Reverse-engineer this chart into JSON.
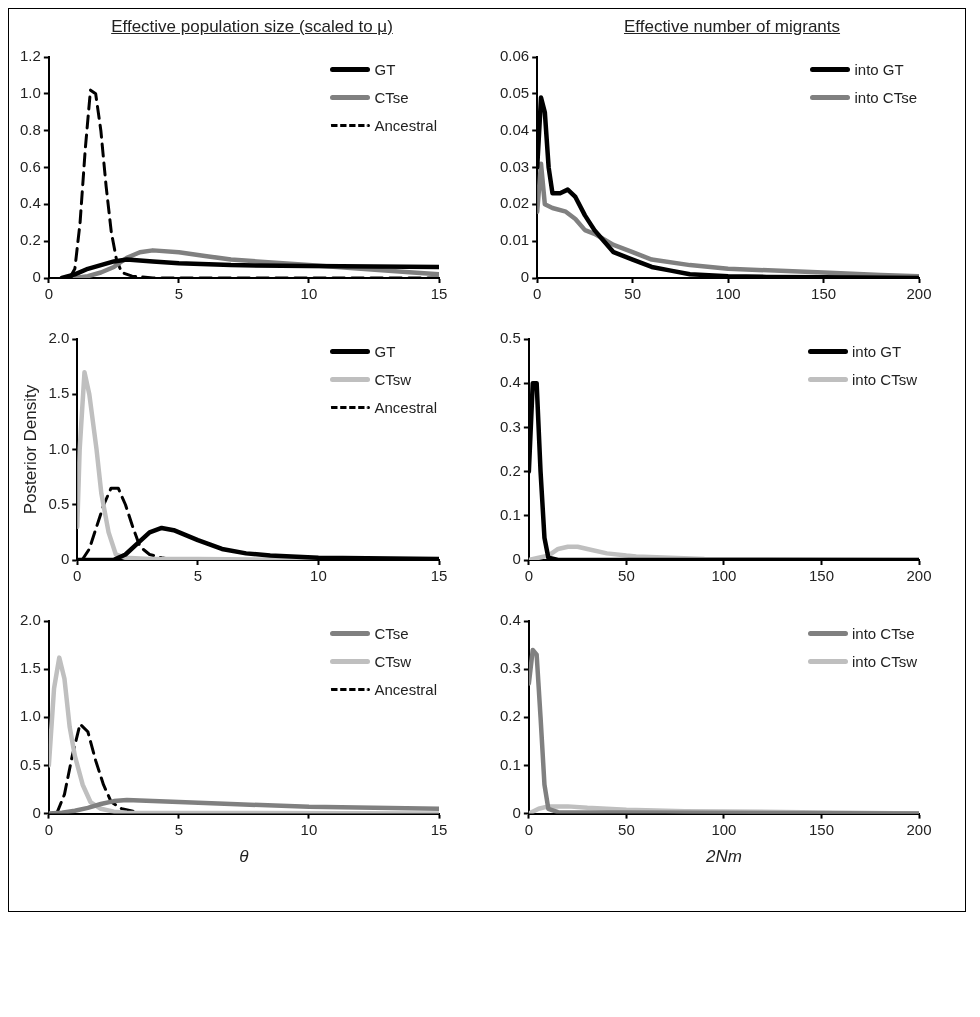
{
  "chart_data": [
    {
      "type": "line",
      "title": "Effective population size (scaled to μ)",
      "xlim": [
        0,
        15
      ],
      "xticks": [
        0,
        5,
        10,
        15
      ],
      "ylim": [
        0,
        1.2
      ],
      "yticks": [
        {
          "value": 0,
          "label": "0"
        },
        {
          "value": 0.2,
          "label": "0.2"
        },
        {
          "value": 0.4,
          "label": "0.4"
        },
        {
          "value": 0.6,
          "label": "0.6"
        },
        {
          "value": 0.8,
          "label": "0.8"
        },
        {
          "value": 1,
          "label": "1.0"
        },
        {
          "value": 1.2,
          "label": "1.2"
        }
      ],
      "grid": false,
      "legend": "top right",
      "series": [
        {
          "name": "GT",
          "color": "#000000",
          "x": [
            0.5,
            1,
            1.5,
            2,
            2.5,
            3,
            4,
            5,
            7,
            10,
            15
          ],
          "values": [
            0,
            0.02,
            0.05,
            0.07,
            0.09,
            0.1,
            0.09,
            0.08,
            0.07,
            0.065,
            0.06
          ]
        },
        {
          "name": "CTse",
          "color": "#808080",
          "x": [
            1,
            1.5,
            2,
            2.5,
            3,
            3.5,
            4,
            5,
            6,
            7,
            8,
            10,
            12,
            14,
            15
          ],
          "values": [
            0,
            0.01,
            0.03,
            0.06,
            0.11,
            0.14,
            0.15,
            0.14,
            0.12,
            0.1,
            0.09,
            0.07,
            0.05,
            0.03,
            0.02
          ]
        },
        {
          "name": "Ancestral",
          "color": "#000000",
          "line_style": "dashed",
          "x": [
            0.8,
            1,
            1.2,
            1.4,
            1.6,
            1.8,
            2,
            2.2,
            2.4,
            2.6,
            2.8,
            3.2,
            4,
            15
          ],
          "values": [
            0,
            0.05,
            0.3,
            0.7,
            1.02,
            1,
            0.8,
            0.5,
            0.25,
            0.1,
            0.03,
            0.01,
            0,
            0
          ]
        }
      ]
    },
    {
      "type": "line",
      "title": "Effective number of migrants",
      "xlim": [
        0,
        200
      ],
      "xticks": [
        0,
        50,
        100,
        150,
        200
      ],
      "ylim": [
        0,
        0.06
      ],
      "yticks": [
        0,
        0.01,
        0.02,
        0.03,
        0.04,
        0.05,
        0.06
      ],
      "grid": false,
      "legend": "top right",
      "series": [
        {
          "name": "into GT",
          "color": "#000000",
          "x": [
            0,
            2,
            4,
            6,
            8,
            12,
            16,
            20,
            25,
            30,
            35,
            40,
            50,
            60,
            70,
            80,
            100,
            120,
            150,
            200
          ],
          "values": [
            0.03,
            0.049,
            0.045,
            0.03,
            0.023,
            0.023,
            0.024,
            0.022,
            0.017,
            0.013,
            0.01,
            0.007,
            0.005,
            0.003,
            0.002,
            0.001,
            0.0005,
            0.0003,
            0.0002,
            0
          ]
        },
        {
          "name": "into CTse",
          "color": "#808080",
          "x": [
            0,
            2,
            4,
            8,
            15,
            20,
            25,
            30,
            40,
            50,
            60,
            80,
            100,
            150,
            180,
            200
          ],
          "values": [
            0.018,
            0.031,
            0.02,
            0.019,
            0.018,
            0.016,
            0.013,
            0.012,
            0.009,
            0.007,
            0.005,
            0.0035,
            0.0025,
            0.0015,
            0.0008,
            0.0005
          ]
        }
      ]
    },
    {
      "type": "line",
      "ylabel": "Posterior Density",
      "xlim": [
        0,
        15
      ],
      "xticks": [
        0,
        5,
        10,
        15
      ],
      "ylim": [
        0,
        2
      ],
      "yticks": [
        {
          "value": 0,
          "label": "0"
        },
        {
          "value": 0.5,
          "label": "0.5"
        },
        {
          "value": 1,
          "label": "1.0"
        },
        {
          "value": 1.5,
          "label": "1.5"
        },
        {
          "value": 2,
          "label": "2.0"
        }
      ],
      "grid": false,
      "legend": "top right",
      "series": [
        {
          "name": "GT",
          "color": "#000000",
          "x": [
            0,
            1.5,
            2,
            2.5,
            3,
            3.5,
            4,
            5,
            6,
            7,
            8,
            10,
            15
          ],
          "values": [
            0,
            0,
            0.05,
            0.15,
            0.25,
            0.29,
            0.27,
            0.18,
            0.1,
            0.06,
            0.04,
            0.02,
            0.01
          ]
        },
        {
          "name": "CTsw",
          "color": "#bfbfbf",
          "x": [
            0,
            0.1,
            0.3,
            0.5,
            0.8,
            1,
            1.3,
            1.6,
            2,
            3,
            5,
            10,
            15
          ],
          "values": [
            0.3,
            1,
            1.7,
            1.5,
            1,
            0.6,
            0.25,
            0.05,
            0.02,
            0.01,
            0.01,
            0,
            0
          ]
        },
        {
          "name": "Ancestral",
          "color": "#000000",
          "line_style": "dashed",
          "x": [
            0.2,
            0.5,
            0.8,
            1.1,
            1.4,
            1.7,
            2,
            2.3,
            2.6,
            3,
            3.5,
            4,
            15
          ],
          "values": [
            0,
            0.1,
            0.3,
            0.5,
            0.65,
            0.65,
            0.5,
            0.3,
            0.12,
            0.05,
            0.02,
            0,
            0
          ]
        }
      ]
    },
    {
      "type": "line",
      "xlim": [
        0,
        200
      ],
      "xticks": [
        0,
        50,
        100,
        150,
        200
      ],
      "ylim": [
        0,
        0.5
      ],
      "yticks": [
        0,
        0.1,
        0.2,
        0.3,
        0.4,
        0.5
      ],
      "grid": false,
      "legend": "top right",
      "series": [
        {
          "name": "into GT",
          "color": "#000000",
          "x": [
            0,
            2,
            4,
            6,
            8,
            10,
            15,
            200
          ],
          "values": [
            0.2,
            0.4,
            0.4,
            0.2,
            0.05,
            0.005,
            0,
            0
          ]
        },
        {
          "name": "into CTsw",
          "color": "#bfbfbf",
          "x": [
            0,
            5,
            10,
            15,
            20,
            25,
            30,
            40,
            50,
            55,
            90,
            200
          ],
          "values": [
            0,
            0.005,
            0.01,
            0.025,
            0.03,
            0.03,
            0.025,
            0.015,
            0.01,
            0.008,
            0.002,
            0
          ]
        }
      ]
    },
    {
      "type": "line",
      "xlabel": "θ",
      "xlim": [
        0,
        15
      ],
      "xticks": [
        0,
        5,
        10,
        15
      ],
      "ylim": [
        0,
        2
      ],
      "yticks": [
        {
          "value": 0,
          "label": "0"
        },
        {
          "value": 0.5,
          "label": "0.5"
        },
        {
          "value": 1,
          "label": "1.0"
        },
        {
          "value": 1.5,
          "label": "1.5"
        },
        {
          "value": 2,
          "label": "2.0"
        }
      ],
      "grid": false,
      "legend": "top right",
      "series": [
        {
          "name": "CTse",
          "color": "#808080",
          "x": [
            0,
            0.5,
            1,
            1.5,
            2,
            2.5,
            3,
            4,
            5,
            7,
            10,
            15
          ],
          "values": [
            0,
            0.01,
            0.03,
            0.06,
            0.1,
            0.13,
            0.14,
            0.13,
            0.12,
            0.1,
            0.07,
            0.05
          ]
        },
        {
          "name": "CTsw",
          "color": "#bfbfbf",
          "x": [
            0,
            0.2,
            0.4,
            0.6,
            0.8,
            1,
            1.3,
            1.6,
            2,
            2.5,
            3,
            15
          ],
          "values": [
            0.5,
            1.3,
            1.62,
            1.4,
            0.9,
            0.6,
            0.3,
            0.12,
            0.05,
            0.02,
            0.01,
            0
          ]
        },
        {
          "name": "Ancestral",
          "color": "#000000",
          "line_style": "dashed",
          "x": [
            0.3,
            0.6,
            0.9,
            1.2,
            1.5,
            1.8,
            2.1,
            2.4,
            2.8,
            3.5,
            15
          ],
          "values": [
            0,
            0.2,
            0.6,
            0.93,
            0.85,
            0.55,
            0.3,
            0.12,
            0.05,
            0.01,
            0
          ]
        }
      ]
    },
    {
      "type": "line",
      "xlabel": "2Nm",
      "xlim": [
        0,
        200
      ],
      "xticks": [
        0,
        50,
        100,
        150,
        200
      ],
      "ylim": [
        0,
        0.4
      ],
      "yticks": [
        0,
        0.1,
        0.2,
        0.3,
        0.4
      ],
      "grid": false,
      "legend": "top right",
      "series": [
        {
          "name": "into CTse",
          "color": "#808080",
          "x": [
            0,
            2,
            4,
            6,
            8,
            10,
            15,
            200
          ],
          "values": [
            0.27,
            0.34,
            0.33,
            0.2,
            0.06,
            0.01,
            0.003,
            0
          ]
        },
        {
          "name": "into CTsw",
          "color": "#bfbfbf",
          "x": [
            0,
            5,
            10,
            20,
            30,
            50,
            80,
            140,
            200
          ],
          "values": [
            0,
            0.01,
            0.015,
            0.015,
            0.012,
            0.008,
            0.005,
            0.003,
            0
          ]
        }
      ]
    }
  ]
}
